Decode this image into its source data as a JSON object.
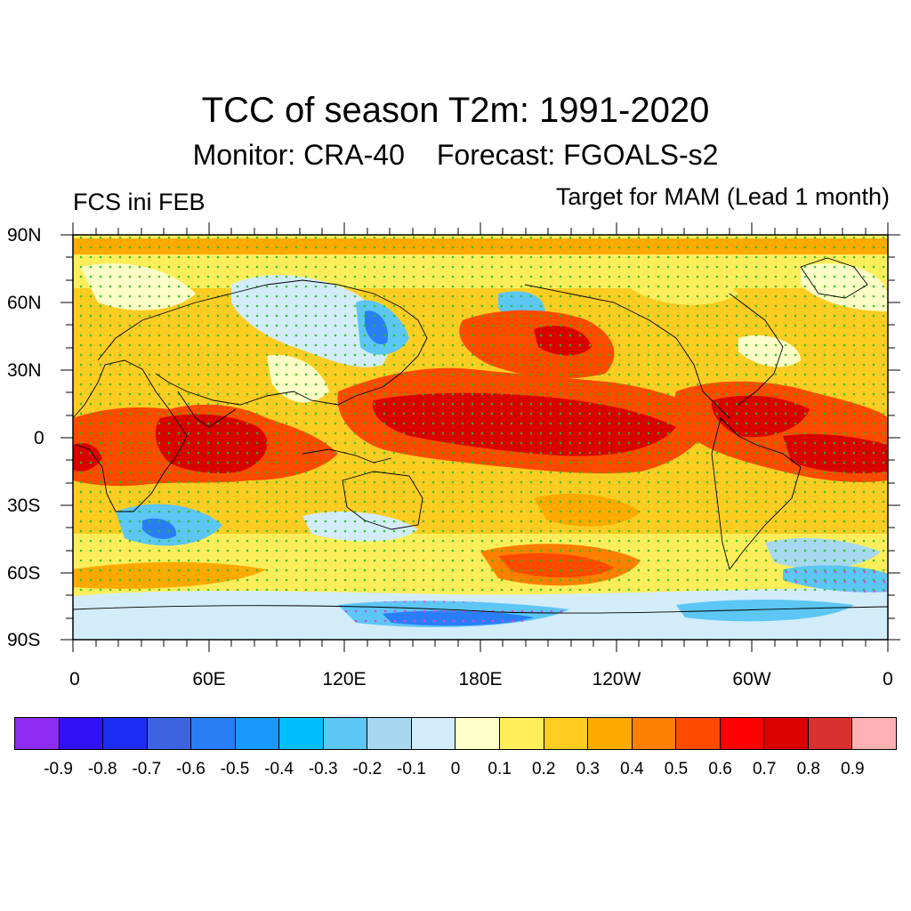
{
  "header": {
    "title": "TCC of season T2m: 1991-2020",
    "monitor": "Monitor: CRA-40",
    "forecast": "Forecast: FGOALS-s2",
    "left_label": "FCS ini FEB",
    "right_label": "Target for MAM (Lead 1 month)"
  },
  "map": {
    "lat_labels": [
      "90N",
      "60N",
      "30N",
      "0",
      "30S",
      "60S",
      "90S"
    ],
    "lon_labels": [
      "0",
      "60E",
      "120E",
      "180E",
      "120W",
      "60W",
      "0"
    ],
    "colors": {
      "stipple_positive": "#22c022",
      "stipple_negative": "#e040e0",
      "coastline": "#000000"
    },
    "regions": [
      {
        "name": "tropical-pacific-warm",
        "level": 0.7
      },
      {
        "name": "indian-ocean-warm",
        "level": 0.7
      },
      {
        "name": "atlantic-warm",
        "level": 0.6
      },
      {
        "name": "north-pacific-warm",
        "level": 0.6
      },
      {
        "name": "southern-ocean-cool",
        "level": -0.3
      }
    ]
  },
  "colorbar": {
    "colors": [
      "#8b2cf0",
      "#3311f5",
      "#1c2ef3",
      "#3e63e0",
      "#2a7ef5",
      "#1a99ff",
      "#00bfff",
      "#5cc6f5",
      "#a8d8f0",
      "#d2ecfa",
      "#ffffc8",
      "#ffee5a",
      "#ffcc22",
      "#ffaa00",
      "#ff7f00",
      "#ff4a00",
      "#ff0000",
      "#d90000",
      "#d93030",
      "#ffb0b0"
    ],
    "labels": [
      "-0.9",
      "-0.8",
      "-0.7",
      "-0.6",
      "-0.5",
      "-0.4",
      "-0.3",
      "-0.2",
      "-0.1",
      "0",
      "0.1",
      "0.2",
      "0.3",
      "0.4",
      "0.5",
      "0.6",
      "0.7",
      "0.8",
      "0.9"
    ]
  }
}
